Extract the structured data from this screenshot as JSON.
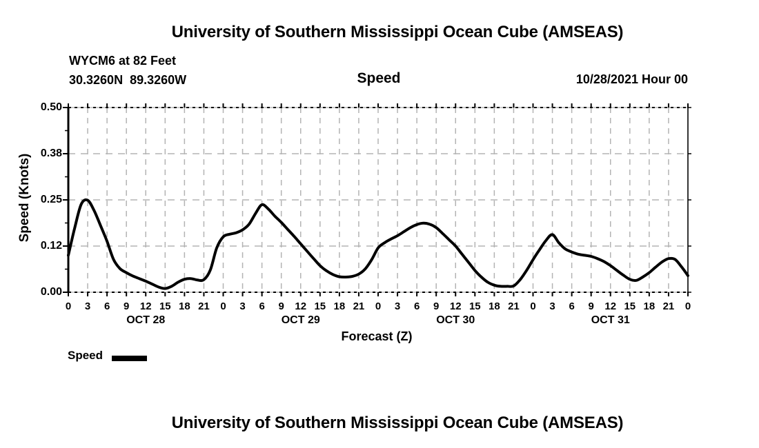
{
  "header": {
    "title": "University of Southern Mississippi Ocean Cube (AMSEAS)",
    "station": "WYCM6 at 82 Feet",
    "coordinates": "30.3260N  89.3260W",
    "run": "10/28/2021 Hour 00"
  },
  "footer": {
    "title": "University of Southern Mississippi Ocean Cube (AMSEAS)"
  },
  "chart_data": {
    "type": "line",
    "title": "Speed",
    "xlabel": "Forecast (Z)",
    "ylabel": "Speed (Knots)",
    "ylim": [
      0.0,
      0.5
    ],
    "yticks": [
      0.0,
      0.125,
      0.25,
      0.375,
      0.5
    ],
    "ytick_labels": [
      "0.00",
      "0.12",
      "0.25",
      "0.38",
      "0.50"
    ],
    "ytick_minor_step": 0.0625,
    "x_hours_range": [
      0,
      96
    ],
    "xtick_step_hours": 3,
    "xtick_label_cycle": [
      "0",
      "3",
      "6",
      "9",
      "12",
      "15",
      "18",
      "21"
    ],
    "day_labels": [
      "OCT 28",
      "OCT 29",
      "OCT 30",
      "OCT 31"
    ],
    "grid": "dashed",
    "legend_position": "bottom-left",
    "line_color": "#000000",
    "grid_color": "#b3b3b3",
    "frame_color": "#000000",
    "series": [
      {
        "name": "Speed",
        "x_hours": [
          0,
          1,
          2,
          3,
          4,
          5,
          6,
          7,
          8,
          9,
          10,
          11,
          12,
          13,
          14,
          15,
          16,
          17,
          18,
          19,
          20,
          21,
          22,
          23,
          24,
          25,
          26,
          27,
          28,
          29,
          30,
          31,
          32,
          33,
          34,
          35,
          36,
          37,
          38,
          39,
          40,
          41,
          42,
          43,
          44,
          45,
          46,
          47,
          48,
          49,
          50,
          51,
          52,
          53,
          54,
          55,
          56,
          57,
          58,
          59,
          60,
          61,
          62,
          63,
          64,
          65,
          66,
          67,
          68,
          69,
          70,
          71,
          72,
          73,
          74,
          75,
          76,
          77,
          78,
          79,
          80,
          81,
          82,
          83,
          84,
          85,
          86,
          87,
          88,
          89,
          90,
          91,
          92,
          93,
          94,
          95,
          96
        ],
        "values": [
          0.1,
          0.175,
          0.238,
          0.249,
          0.221,
          0.18,
          0.138,
          0.089,
          0.064,
          0.053,
          0.044,
          0.037,
          0.03,
          0.022,
          0.014,
          0.01,
          0.016,
          0.027,
          0.035,
          0.037,
          0.033,
          0.034,
          0.06,
          0.12,
          0.15,
          0.157,
          0.161,
          0.169,
          0.184,
          0.213,
          0.237,
          0.225,
          0.206,
          0.189,
          0.17,
          0.151,
          0.131,
          0.111,
          0.091,
          0.072,
          0.058,
          0.048,
          0.042,
          0.041,
          0.043,
          0.049,
          0.063,
          0.088,
          0.12,
          0.134,
          0.144,
          0.153,
          0.164,
          0.175,
          0.183,
          0.187,
          0.184,
          0.175,
          0.159,
          0.142,
          0.125,
          0.103,
          0.081,
          0.059,
          0.041,
          0.027,
          0.019,
          0.016,
          0.016,
          0.017,
          0.034,
          0.059,
          0.088,
          0.115,
          0.14,
          0.156,
          0.134,
          0.117,
          0.109,
          0.103,
          0.1,
          0.097,
          0.091,
          0.083,
          0.072,
          0.059,
          0.046,
          0.035,
          0.032,
          0.041,
          0.053,
          0.068,
          0.082,
          0.091,
          0.089,
          0.069,
          0.045
        ]
      }
    ]
  }
}
